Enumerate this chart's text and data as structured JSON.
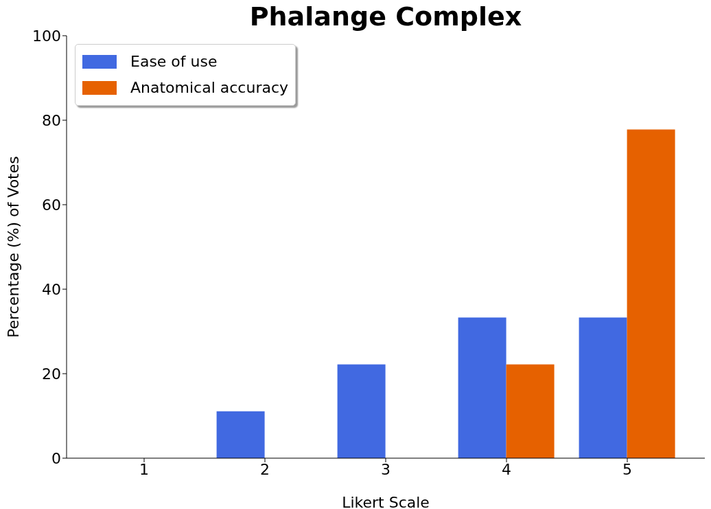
{
  "chart_data": {
    "type": "bar",
    "title": "Phalange Complex",
    "xlabel": "Likert Scale",
    "ylabel": "Percentage (%) of Votes",
    "categories": [
      "1",
      "2",
      "3",
      "4",
      "5"
    ],
    "series": [
      {
        "name": "Ease of use",
        "color": "#4169e1",
        "values": [
          0,
          11.1,
          22.2,
          33.3,
          33.3
        ]
      },
      {
        "name": "Anatomical accuracy",
        "color": "#e66100",
        "values": [
          0,
          0,
          0,
          22.2,
          77.8
        ]
      }
    ],
    "ylim": [
      0,
      100
    ],
    "yticks": [
      0,
      20,
      40,
      60,
      80,
      100
    ],
    "grid": false,
    "legend": "top left"
  }
}
